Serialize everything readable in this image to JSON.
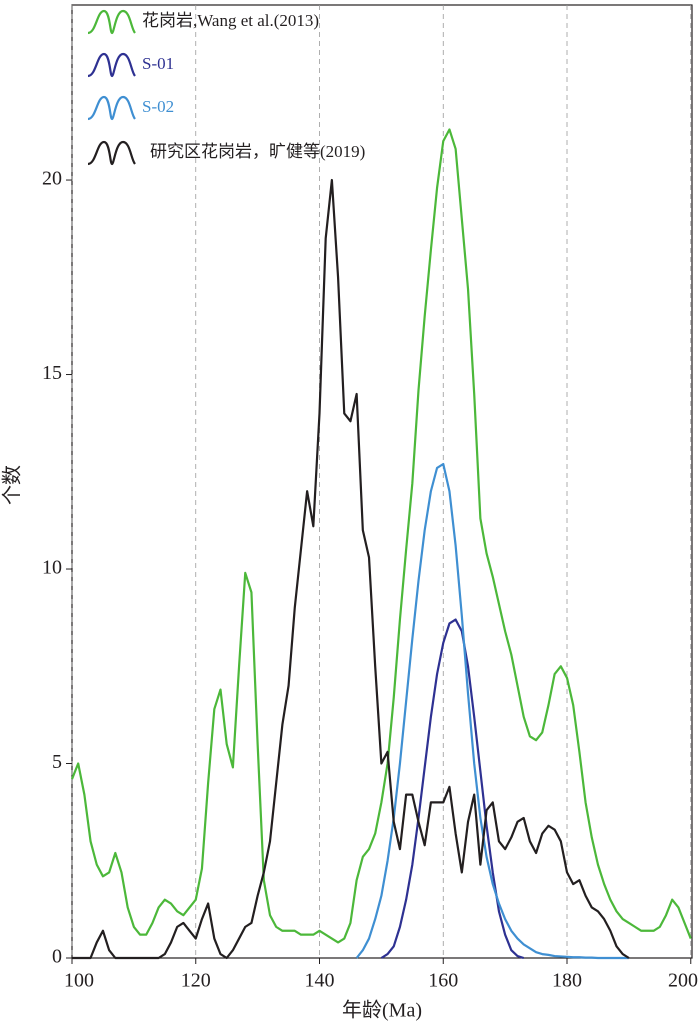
{
  "chart_data": {
    "type": "line",
    "x_label": "年龄(Ma)",
    "y_label": "个数",
    "x": [
      100,
      101,
      102,
      103,
      104,
      105,
      106,
      107,
      108,
      109,
      110,
      111,
      112,
      113,
      114,
      115,
      116,
      117,
      118,
      119,
      120,
      121,
      122,
      123,
      124,
      125,
      126,
      127,
      128,
      129,
      130,
      131,
      132,
      133,
      134,
      135,
      136,
      137,
      138,
      139,
      140,
      141,
      142,
      143,
      144,
      145,
      146,
      147,
      148,
      149,
      150,
      151,
      152,
      153,
      154,
      155,
      156,
      157,
      158,
      159,
      160,
      161,
      162,
      163,
      164,
      165,
      166,
      167,
      168,
      169,
      170,
      171,
      172,
      173,
      174,
      175,
      176,
      177,
      178,
      179,
      180,
      181,
      182,
      183,
      184,
      185,
      186,
      187,
      188,
      189,
      190,
      191,
      192,
      193,
      194,
      195,
      196,
      197,
      198,
      199,
      200
    ],
    "series": [
      {
        "name": "花岗岩,Wang et al.(2013)",
        "color": "#4cb83a",
        "values": [
          4.6,
          5.0,
          4.2,
          3.0,
          2.4,
          2.1,
          2.2,
          2.7,
          2.2,
          1.3,
          0.8,
          0.6,
          0.6,
          0.9,
          1.3,
          1.5,
          1.4,
          1.2,
          1.1,
          1.3,
          1.5,
          2.3,
          4.5,
          6.4,
          6.9,
          5.5,
          4.9,
          7.5,
          9.9,
          9.4,
          5.5,
          2.0,
          1.1,
          0.8,
          0.7,
          0.7,
          0.7,
          0.6,
          0.6,
          0.6,
          0.7,
          0.6,
          0.5,
          0.4,
          0.5,
          0.9,
          2.0,
          2.6,
          2.8,
          3.2,
          4.0,
          5.0,
          6.7,
          8.7,
          10.5,
          12.2,
          14.6,
          16.5,
          18.2,
          19.8,
          21.0,
          21.3,
          20.8,
          19.0,
          17.2,
          14.5,
          11.3,
          10.4,
          9.8,
          9.1,
          8.4,
          7.8,
          7.0,
          6.2,
          5.7,
          5.6,
          5.8,
          6.5,
          7.3,
          7.5,
          7.2,
          6.5,
          5.3,
          4.0,
          3.1,
          2.4,
          1.9,
          1.5,
          1.2,
          1.0,
          0.9,
          0.8,
          0.7,
          0.7,
          0.7,
          0.8,
          1.1,
          1.5,
          1.3,
          0.9,
          0.5
        ]
      },
      {
        "name": "S-01",
        "color": "#2e3192",
        "values": [
          null,
          null,
          null,
          null,
          null,
          null,
          null,
          null,
          null,
          null,
          null,
          null,
          null,
          null,
          null,
          null,
          null,
          null,
          null,
          null,
          null,
          null,
          null,
          null,
          null,
          null,
          null,
          null,
          null,
          null,
          null,
          null,
          null,
          null,
          null,
          null,
          null,
          null,
          null,
          null,
          null,
          null,
          null,
          null,
          null,
          null,
          null,
          null,
          null,
          null,
          0,
          0.1,
          0.3,
          0.8,
          1.5,
          2.4,
          3.6,
          4.9,
          6.2,
          7.3,
          8.1,
          8.6,
          8.7,
          8.4,
          7.5,
          6.2,
          4.8,
          3.4,
          2.2,
          1.2,
          0.6,
          0.2,
          0.05,
          0,
          null,
          null,
          null,
          null,
          null,
          null,
          null,
          null,
          null,
          null,
          null,
          null,
          null,
          null,
          null,
          null,
          null,
          null,
          null,
          null,
          null,
          null,
          null,
          null,
          null,
          null,
          null
        ]
      },
      {
        "name": "S-02",
        "color": "#3f8fd2",
        "values": [
          null,
          null,
          null,
          null,
          null,
          null,
          null,
          null,
          null,
          null,
          null,
          null,
          null,
          null,
          null,
          null,
          null,
          null,
          null,
          null,
          null,
          null,
          null,
          null,
          null,
          null,
          null,
          null,
          null,
          null,
          null,
          null,
          null,
          null,
          null,
          null,
          null,
          null,
          null,
          null,
          null,
          null,
          null,
          null,
          null,
          null,
          0,
          0.2,
          0.5,
          1.0,
          1.6,
          2.5,
          3.6,
          5.0,
          6.6,
          8.2,
          9.7,
          11.0,
          12.0,
          12.6,
          12.7,
          12.0,
          10.6,
          8.8,
          6.8,
          5.0,
          3.6,
          2.6,
          1.9,
          1.4,
          1.0,
          0.7,
          0.5,
          0.35,
          0.25,
          0.15,
          0.1,
          0.08,
          0.05,
          0.04,
          0.03,
          0.02,
          0.02,
          0.01,
          0.01,
          0,
          0,
          0,
          0,
          0,
          0,
          null,
          null,
          null,
          null,
          null,
          null,
          null,
          null,
          null,
          null
        ]
      },
      {
        "name": "研究区花岗岩，旷健等(2019)",
        "color": "#231f20",
        "values": [
          0,
          0,
          0,
          0,
          0.4,
          0.7,
          0.2,
          0,
          0,
          0,
          0,
          0,
          0,
          0,
          0,
          0.1,
          0.4,
          0.8,
          0.9,
          0.7,
          0.5,
          1.0,
          1.4,
          0.5,
          0.1,
          0,
          0.2,
          0.5,
          0.8,
          0.9,
          1.6,
          2.2,
          3.0,
          4.5,
          6.0,
          7.0,
          9.0,
          10.5,
          12.0,
          11.1,
          14.0,
          18.5,
          20.0,
          17.5,
          14.0,
          13.8,
          14.5,
          11.0,
          10.3,
          7.5,
          5.0,
          5.3,
          3.5,
          2.8,
          4.2,
          4.2,
          3.5,
          2.9,
          4.0,
          4.0,
          4.0,
          4.4,
          3.2,
          2.2,
          3.5,
          4.2,
          2.4,
          3.8,
          4.0,
          3.0,
          2.8,
          3.1,
          3.5,
          3.6,
          3.0,
          2.7,
          3.2,
          3.4,
          3.3,
          3.0,
          2.2,
          1.9,
          2.0,
          1.6,
          1.3,
          1.2,
          1.0,
          0.7,
          0.3,
          0.1,
          0,
          null,
          null,
          null,
          null,
          null,
          null,
          null,
          null,
          null,
          null
        ]
      }
    ],
    "xlim": [
      100,
      200.2
    ],
    "xticks": [
      100,
      120,
      140,
      160,
      180,
      200
    ],
    "ylim": [
      0,
      24.5
    ],
    "yticks": [
      0,
      5,
      10,
      15,
      20
    ],
    "grid": "x",
    "legend": "top-left"
  }
}
